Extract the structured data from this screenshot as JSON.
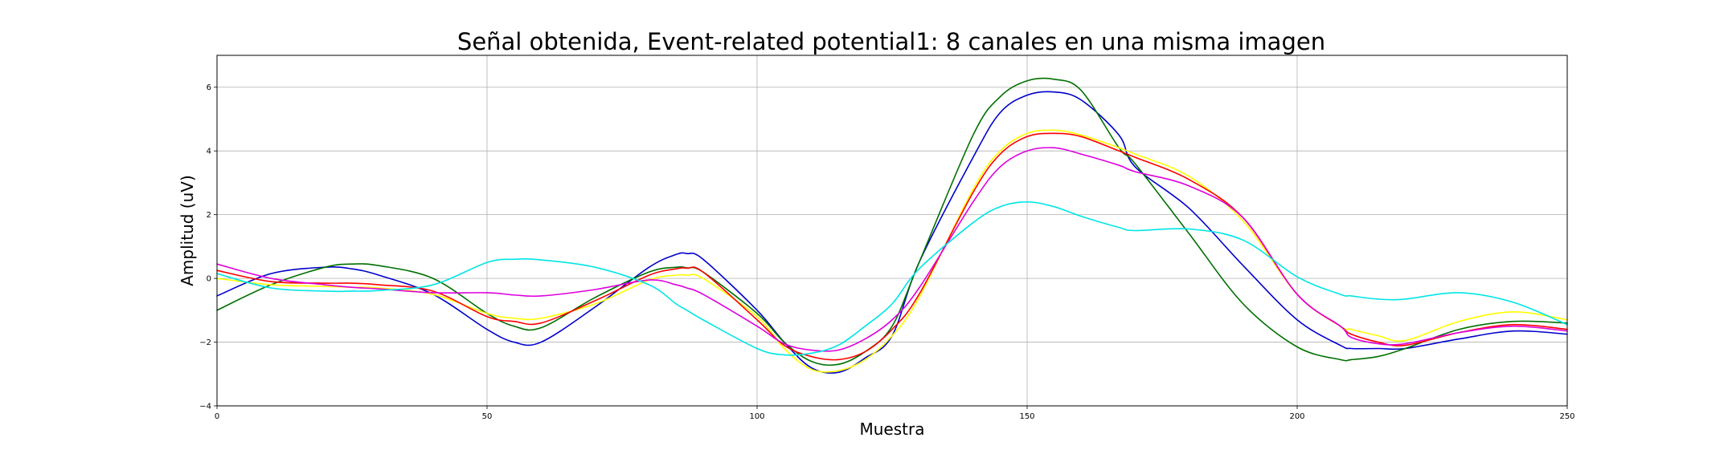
{
  "chart_data": {
    "type": "line",
    "title": "Señal obtenida, Event-related potential1: 8 canales en una misma imagen",
    "xlabel": "Muestra",
    "ylabel": "Amplitud (uV)",
    "xlim": [
      0,
      250
    ],
    "ylim": [
      -4,
      7
    ],
    "xticks": [
      0,
      50,
      100,
      150,
      200,
      250
    ],
    "yticks": [
      -4,
      -2,
      0,
      2,
      4,
      6
    ],
    "grid": true,
    "x": [
      0,
      10,
      20,
      25,
      30,
      40,
      50,
      55,
      60,
      70,
      80,
      85,
      87,
      90,
      100,
      105,
      110,
      115,
      120,
      125,
      130,
      140,
      145,
      150,
      155,
      160,
      167,
      170,
      180,
      190,
      200,
      208,
      210,
      215,
      220,
      230,
      240,
      250
    ],
    "series": [
      {
        "color": "#0000cc",
        "values": [
          -0.55,
          0.15,
          0.35,
          0.3,
          0.1,
          -0.5,
          -1.6,
          -2.0,
          -2.0,
          -0.9,
          0.35,
          0.75,
          0.78,
          0.6,
          -1.0,
          -2.0,
          -2.8,
          -2.95,
          -2.5,
          -1.8,
          0.5,
          3.8,
          5.2,
          5.75,
          5.85,
          5.6,
          4.5,
          3.5,
          2.2,
          0.4,
          -1.3,
          -2.1,
          -2.2,
          -2.2,
          -2.2,
          -1.9,
          -1.65,
          -1.75
        ]
      },
      {
        "color": "#007000",
        "values": [
          -1.0,
          -0.2,
          0.35,
          0.45,
          0.4,
          0.0,
          -1.1,
          -1.5,
          -1.55,
          -0.6,
          0.2,
          0.35,
          0.33,
          0.2,
          -1.1,
          -2.0,
          -2.6,
          -2.7,
          -2.3,
          -1.5,
          0.5,
          4.5,
          5.7,
          6.2,
          6.25,
          5.9,
          4.1,
          3.6,
          1.4,
          -0.8,
          -2.15,
          -2.55,
          -2.55,
          -2.45,
          -2.2,
          -1.6,
          -1.35,
          -1.4
        ]
      },
      {
        "color": "#ffff00",
        "values": [
          0.0,
          -0.2,
          -0.25,
          -0.28,
          -0.3,
          -0.5,
          -1.1,
          -1.25,
          -1.25,
          -0.8,
          -0.05,
          0.1,
          0.1,
          0.0,
          -1.2,
          -2.2,
          -2.85,
          -2.9,
          -2.55,
          -1.8,
          -0.6,
          2.8,
          4.0,
          4.55,
          4.65,
          4.5,
          4.1,
          3.9,
          3.2,
          1.8,
          -0.5,
          -1.5,
          -1.6,
          -1.8,
          -1.95,
          -1.35,
          -1.05,
          -1.3
        ]
      },
      {
        "color": "#ff0000",
        "values": [
          0.25,
          -0.1,
          -0.15,
          -0.15,
          -0.2,
          -0.4,
          -1.2,
          -1.35,
          -1.4,
          -0.7,
          0.1,
          0.3,
          0.32,
          0.2,
          -1.3,
          -2.1,
          -2.45,
          -2.55,
          -2.3,
          -1.6,
          -0.5,
          2.7,
          3.9,
          4.45,
          4.55,
          4.45,
          4.0,
          3.8,
          3.1,
          1.9,
          -0.5,
          -1.5,
          -1.75,
          -2.0,
          -2.1,
          -1.7,
          -1.45,
          -1.6
        ]
      },
      {
        "color": "#dd00dd",
        "values": [
          0.45,
          0.0,
          -0.2,
          -0.28,
          -0.33,
          -0.45,
          -0.45,
          -0.52,
          -0.55,
          -0.35,
          -0.05,
          -0.2,
          -0.3,
          -0.5,
          -1.5,
          -2.05,
          -2.25,
          -2.25,
          -1.9,
          -1.3,
          -0.3,
          2.4,
          3.5,
          4.0,
          4.1,
          3.9,
          3.55,
          3.35,
          2.9,
          1.9,
          -0.5,
          -1.5,
          -1.85,
          -2.05,
          -2.05,
          -1.7,
          -1.5,
          -1.65
        ]
      },
      {
        "color": "#00e5e5",
        "values": [
          0.15,
          -0.3,
          -0.4,
          -0.4,
          -0.38,
          -0.2,
          0.5,
          0.6,
          0.58,
          0.35,
          -0.2,
          -0.8,
          -1.0,
          -1.3,
          -2.2,
          -2.4,
          -2.35,
          -2.1,
          -1.5,
          -0.8,
          0.3,
          1.75,
          2.25,
          2.4,
          2.25,
          1.95,
          1.6,
          1.5,
          1.55,
          1.2,
          0.05,
          -0.5,
          -0.55,
          -0.65,
          -0.65,
          -0.45,
          -0.75,
          -1.45
        ]
      }
    ]
  }
}
